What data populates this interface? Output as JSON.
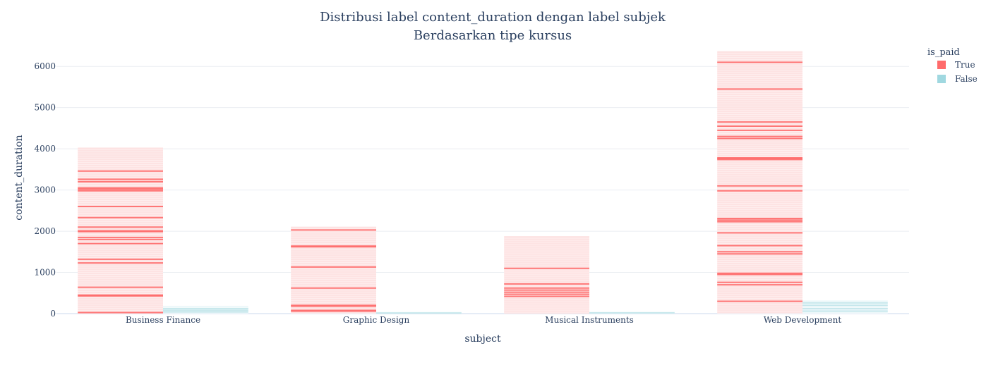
{
  "chart_data": {
    "type": "bar",
    "barmode": "group",
    "title": "Distribusi label content_duration dengan label subjek",
    "subtitle": "Berdasarkan tipe kursus",
    "xlabel": "subject",
    "ylabel": "content_duration",
    "categories": [
      "Business Finance",
      "Graphic Design",
      "Musical Instruments",
      "Web Development"
    ],
    "ylim": [
      0,
      6380
    ],
    "yticks": [
      0,
      1000,
      2000,
      3000,
      4000,
      5000,
      6000
    ],
    "grid": true,
    "legend": {
      "title": "is_paid",
      "placement": "top-right"
    },
    "series": [
      {
        "name": "True",
        "color": "#ff6b6b",
        "values": [
          4030,
          2110,
          1880,
          6370
        ]
      },
      {
        "name": "False",
        "color": "#a0d8e0",
        "values": [
          190,
          40,
          40,
          320
        ]
      }
    ],
    "segment_lines": {
      "True": [
        [
          25,
          430,
          450,
          640,
          1230,
          1320,
          1700,
          1800,
          1850,
          1990,
          2010,
          2100,
          2330,
          2600,
          2980,
          3020,
          3050,
          3200,
          3260,
          3460
        ],
        [
          60,
          80,
          180,
          200,
          620,
          1130,
          1620,
          1640,
          2030
        ],
        [
          420,
          470,
          520,
          570,
          620,
          720,
          1100
        ],
        [
          300,
          700,
          760,
          950,
          980,
          1450,
          1500,
          1650,
          1960,
          2230,
          2270,
          2310,
          2980,
          3100,
          3740,
          3760,
          3780,
          4250,
          4300,
          4450,
          4550,
          4650,
          5450,
          6100
        ]
      ],
      "False": [
        [
          40,
          80,
          120
        ],
        [
          15
        ],
        [
          20
        ],
        [
          60,
          120,
          200,
          260
        ]
      ]
    }
  }
}
